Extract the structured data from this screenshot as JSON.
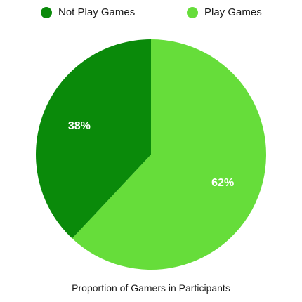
{
  "chart_data": {
    "type": "pie",
    "title": "Proportion of Gamers in Participants",
    "categories": [
      "Not Play Games",
      "Play Games"
    ],
    "values": [
      38,
      62
    ],
    "labels": [
      "38%",
      "62%"
    ],
    "colors": [
      "#0a8a0a",
      "#66dd3a"
    ],
    "legend_position": "top"
  }
}
